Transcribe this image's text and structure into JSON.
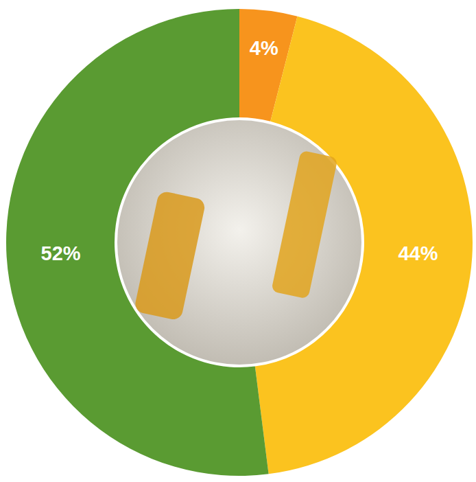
{
  "chart_data": {
    "type": "pie",
    "values": [
      4,
      44,
      52
    ],
    "value_labels": [
      "4%",
      "44%",
      "52%"
    ],
    "colors": [
      "#f7941d",
      "#fbc31f",
      "#5a9b32"
    ],
    "data_labels": true
  }
}
